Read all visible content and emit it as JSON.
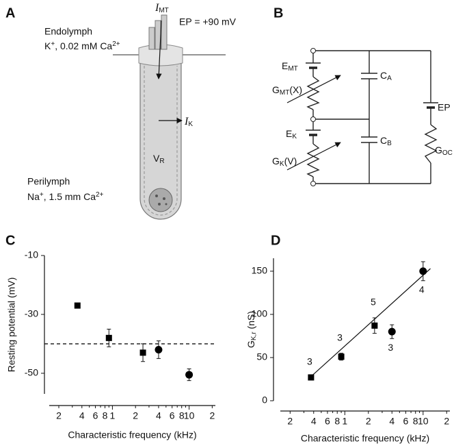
{
  "panel_labels": [
    "A",
    "B",
    "C",
    "D"
  ],
  "diagram_a": {
    "i_mt": [
      {
        "text": "I",
        "style": "italic"
      },
      {
        "text": "MT",
        "shift": "sub"
      }
    ],
    "ep": "EP = +90 mV",
    "endolymph": "Endolymph",
    "endolymph_ions": [
      {
        "text": "K"
      },
      {
        "text": "+",
        "shift": "sup"
      },
      {
        "text": ", 0.02 mM Ca"
      },
      {
        "text": "2+",
        "shift": "sup"
      }
    ],
    "i_k": [
      {
        "text": "I",
        "style": "italic"
      },
      {
        "text": "K",
        "shift": "sub"
      }
    ],
    "v_r": [
      {
        "text": "V"
      },
      {
        "text": "R",
        "shift": "sub"
      }
    ],
    "perilymph": "Perilymph",
    "perilymph_ions": [
      {
        "text": "Na"
      },
      {
        "text": "+",
        "shift": "sup"
      },
      {
        "text": ", 1.5 mm Ca"
      },
      {
        "text": "2+",
        "shift": "sup"
      }
    ]
  },
  "diagram_b": {
    "e_mt": [
      {
        "text": "E"
      },
      {
        "text": "MT",
        "shift": "sub"
      }
    ],
    "g_mt": [
      {
        "text": "G"
      },
      {
        "text": "MT",
        "shift": "sub"
      },
      {
        "text": "(X)"
      }
    ],
    "c_a": [
      {
        "text": "C"
      },
      {
        "text": "A",
        "shift": "sub"
      }
    ],
    "e_k": [
      {
        "text": "E"
      },
      {
        "text": "K",
        "shift": "sub"
      }
    ],
    "g_k": [
      {
        "text": "G"
      },
      {
        "text": "K",
        "shift": "sub"
      },
      {
        "text": "(V)"
      }
    ],
    "c_b": [
      {
        "text": "C"
      },
      {
        "text": "B",
        "shift": "sub"
      }
    ],
    "ep": "EP",
    "g_oc": [
      {
        "text": "G"
      },
      {
        "text": "OC",
        "shift": "sub"
      }
    ]
  },
  "chart_data": [
    {
      "type": "scatter",
      "xscale": "log",
      "color": "#000000",
      "x_label": "Characteristic frequency (kHz)",
      "y_label": "Resting potential (mV)",
      "x": [
        0.35,
        0.9,
        2.5,
        4,
        10
      ],
      "values": [
        -27,
        -38,
        -43,
        -42,
        -50.5
      ],
      "errors": [
        0,
        3,
        3,
        3,
        2
      ],
      "markers": [
        "square",
        "square",
        "square",
        "circle",
        "circle"
      ],
      "reference_line": -40,
      "xlim": [
        0.15,
        22
      ],
      "ylim": [
        -57,
        -10
      ],
      "xticks": [
        {
          "value": 0.2,
          "label": "2"
        },
        {
          "value": 0.4,
          "label": "4"
        },
        {
          "value": 0.6,
          "label": "6"
        },
        {
          "value": 0.8,
          "label": "8"
        },
        1,
        2,
        4,
        6,
        8,
        10,
        {
          "value": 20,
          "label": "2"
        }
      ],
      "xminor_ticks": [
        0.3,
        0.5,
        0.7,
        0.9,
        3,
        5,
        7,
        9
      ],
      "yticks": [
        -10,
        -30,
        -50
      ]
    },
    {
      "type": "scatter",
      "xscale": "log",
      "color": "#000000",
      "x_label": "Characteristic frequency (kHz)",
      "y_label": [
        {
          "text": "G"
        },
        {
          "text": "K,r",
          "shift": "sub"
        },
        {
          "text": " (nS)"
        }
      ],
      "x": [
        0.37,
        0.9,
        2.4,
        4,
        10
      ],
      "values": [
        27,
        51,
        87,
        80,
        150
      ],
      "errors": [
        0,
        4,
        9,
        8,
        11
      ],
      "markers": [
        "square",
        "square",
        "square",
        "circle",
        "circle"
      ],
      "point_labels": [
        "3",
        "3",
        "5",
        "3",
        "4"
      ],
      "point_label_positions": [
        "above",
        "above",
        "above",
        "below",
        "below"
      ],
      "trend_line": {
        "x": [
          0.34,
          12.4
        ],
        "y": [
          25,
          153
        ]
      },
      "xlim": [
        0.15,
        22
      ],
      "ylim": [
        0,
        165
      ],
      "xticks": [
        {
          "value": 0.2,
          "label": "2"
        },
        {
          "value": 0.4,
          "label": "4"
        },
        {
          "value": 0.6,
          "label": "6"
        },
        {
          "value": 0.8,
          "label": "8"
        },
        1,
        2,
        4,
        6,
        8,
        10,
        {
          "value": 20,
          "label": "2"
        }
      ],
      "xminor_ticks": [
        0.3,
        0.5,
        0.7,
        0.9,
        3,
        5,
        7,
        9
      ],
      "yticks": [
        0,
        50,
        100,
        150
      ]
    }
  ]
}
